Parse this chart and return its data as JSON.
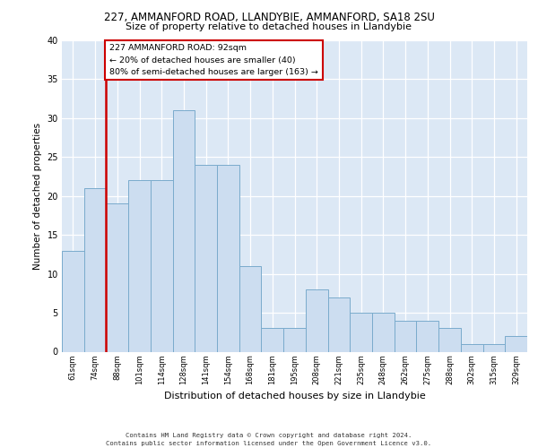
{
  "title1": "227, AMMANFORD ROAD, LLANDYBIE, AMMANFORD, SA18 2SU",
  "title2": "Size of property relative to detached houses in Llandybie",
  "xlabel": "Distribution of detached houses by size in Llandybie",
  "ylabel": "Number of detached properties",
  "categories": [
    "61sqm",
    "74sqm",
    "88sqm",
    "101sqm",
    "114sqm",
    "128sqm",
    "141sqm",
    "154sqm",
    "168sqm",
    "181sqm",
    "195sqm",
    "208sqm",
    "221sqm",
    "235sqm",
    "248sqm",
    "262sqm",
    "275sqm",
    "288sqm",
    "302sqm",
    "315sqm",
    "329sqm"
  ],
  "values": [
    13,
    21,
    19,
    22,
    22,
    31,
    24,
    24,
    11,
    3,
    3,
    8,
    7,
    5,
    5,
    4,
    4,
    3,
    1,
    1,
    2
  ],
  "bar_color": "#ccddf0",
  "bar_edge_color": "#7aabcc",
  "vline_color": "#cc0000",
  "annotation_lines": [
    "227 AMMANFORD ROAD: 92sqm",
    "← 20% of detached houses are smaller (40)",
    "80% of semi-detached houses are larger (163) →"
  ],
  "annotation_box_color": "#cc0000",
  "ylim": [
    0,
    40
  ],
  "yticks": [
    0,
    5,
    10,
    15,
    20,
    25,
    30,
    35,
    40
  ],
  "bg_color": "#dce8f5",
  "footer1": "Contains HM Land Registry data © Crown copyright and database right 2024.",
  "footer2": "Contains public sector information licensed under the Open Government Licence v3.0."
}
